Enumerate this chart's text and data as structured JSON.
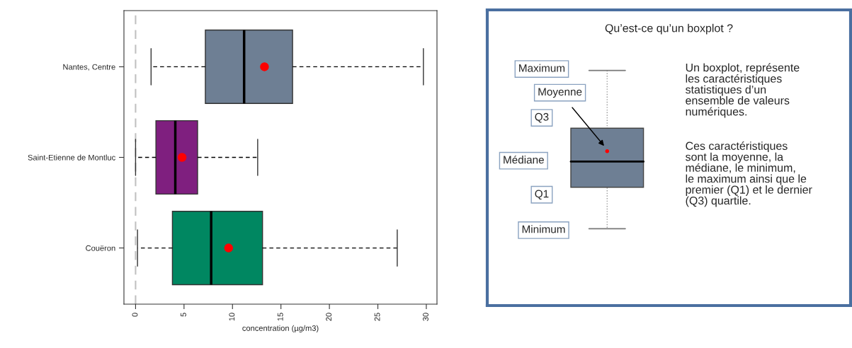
{
  "chart_data": [
    {
      "type": "box",
      "orientation": "horizontal",
      "xlabel": "concentration (µg/m3)",
      "categories": [
        "Nantes, Centre",
        "Saint-Etienne de Montluc",
        "Couëron"
      ],
      "colors": [
        "#6e7f94",
        "#7f1f7f",
        "#008761"
      ],
      "boxes": [
        {
          "low": 1.6,
          "q1": 7.2,
          "median": 11.2,
          "q3": 16.2,
          "high": 29.7,
          "mean": 13.3
        },
        {
          "low": 0.0,
          "q1": 2.1,
          "median": 4.1,
          "q3": 6.4,
          "high": 12.6,
          "mean": 4.8
        },
        {
          "low": 0.2,
          "q1": 3.8,
          "median": 7.8,
          "q3": 13.1,
          "high": 27.0,
          "mean": 9.6
        }
      ],
      "xlim": [
        -1.2,
        31.1
      ],
      "xticks": [
        0,
        5,
        10,
        15,
        20,
        25,
        30
      ],
      "ref_lines": [
        {
          "axis": "x",
          "value": 0,
          "color": "#c0c0c0",
          "line_style": "dashed"
        }
      ],
      "grid": false,
      "legend": false
    },
    {
      "type": "other",
      "title": "Qu’est-ce qu’un boxplot ?",
      "annotations": [
        "Maximum",
        "Moyenne",
        "Q3",
        "Médiane",
        "Q1",
        "Minimum",
        "Un boxplot, représente\nles caractéristiques\nstatistiques d’un\nensemble de valeurs\nnumériques.",
        "Ces caractéristiques\nsont la moyenne, la\nmédiane, le minimum,\nle maximum ainsi que le\npremier (Q1) et le dernier\n(Q3) quartile."
      ]
    }
  ]
}
